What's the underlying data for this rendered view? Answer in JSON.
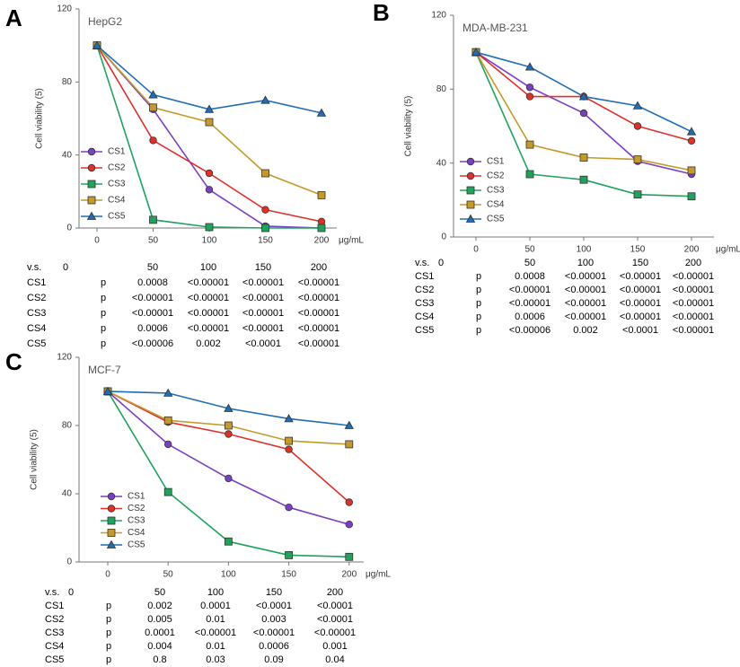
{
  "chart_data": [
    {
      "type": "line",
      "panel_label": "A",
      "title": "HepG2",
      "ylabel": "Cell viability (5)",
      "x_unit": "μg/mL",
      "categories": [
        "0",
        "50",
        "100",
        "150",
        "200"
      ],
      "ylim": [
        0,
        120
      ],
      "yticks": [
        0,
        40,
        80,
        120
      ],
      "legend": "left",
      "series": [
        {
          "name": "CS1",
          "color": "#7b3fc4",
          "marker": "circle",
          "values": [
            100,
            65,
            21,
            1,
            0
          ]
        },
        {
          "name": "CS2",
          "color": "#e0302a",
          "marker": "circle",
          "values": [
            100,
            48,
            30,
            10,
            3.5
          ]
        },
        {
          "name": "CS3",
          "color": "#1fa35a",
          "marker": "square",
          "values": [
            100,
            4.5,
            0.5,
            0,
            0
          ]
        },
        {
          "name": "CS4",
          "color": "#c49a2c",
          "marker": "square",
          "values": [
            100,
            66,
            58,
            30,
            18
          ]
        },
        {
          "name": "CS5",
          "color": "#1f6eb5",
          "marker": "triangle",
          "values": [
            100,
            73,
            65,
            70,
            63
          ]
        }
      ],
      "table": {
        "header": [
          "v.s.",
          "0",
          "50",
          "100",
          "150",
          "200"
        ],
        "rows": [
          [
            "CS1",
            "p",
            "0.0008",
            "<0.00001",
            "<0.00001",
            "<0.00001"
          ],
          [
            "CS2",
            "p",
            "<0.00001",
            "<0.00001",
            "<0.00001",
            "<0.00001"
          ],
          [
            "CS3",
            "p",
            "<0.00001",
            "<0.00001",
            "<0.00001",
            "<0.00001"
          ],
          [
            "CS4",
            "p",
            "0.0006",
            "<0.00001",
            "<0.00001",
            "<0.00001"
          ],
          [
            "CS5",
            "p",
            "<0.00006",
            "0.002",
            "<0.0001",
            "<0.00001"
          ]
        ]
      }
    },
    {
      "type": "line",
      "panel_label": "B",
      "title": "MDA-MB-231",
      "ylabel": "Cell viability (5)",
      "x_unit": "μg/mL",
      "categories": [
        "0",
        "50",
        "100",
        "150",
        "200"
      ],
      "ylim": [
        0,
        120
      ],
      "yticks": [
        0,
        40,
        80,
        120
      ],
      "legend": "left",
      "series": [
        {
          "name": "CS1",
          "color": "#7b3fc4",
          "marker": "circle",
          "values": [
            100,
            81,
            67,
            41,
            34
          ]
        },
        {
          "name": "CS2",
          "color": "#e0302a",
          "marker": "circle",
          "values": [
            100,
            76,
            76,
            60,
            52
          ]
        },
        {
          "name": "CS3",
          "color": "#1fa35a",
          "marker": "square",
          "values": [
            100,
            34,
            31,
            23,
            22
          ]
        },
        {
          "name": "CS4",
          "color": "#c49a2c",
          "marker": "square",
          "values": [
            100,
            50,
            43,
            42,
            36
          ]
        },
        {
          "name": "CS5",
          "color": "#1f6eb5",
          "marker": "triangle",
          "values": [
            100,
            92,
            76,
            71,
            57
          ]
        }
      ],
      "table": {
        "header": [
          "v.s.",
          "0",
          "50",
          "100",
          "150",
          "200"
        ],
        "rows": [
          [
            "CS1",
            "p",
            "0.0008",
            "<0.00001",
            "<0.00001",
            "<0.00001"
          ],
          [
            "CS2",
            "p",
            "<0.00001",
            "<0.00001",
            "<0.00001",
            "<0.00001"
          ],
          [
            "CS3",
            "p",
            "<0.00001",
            "<0.00001",
            "<0.00001",
            "<0.00001"
          ],
          [
            "CS4",
            "p",
            "0.0006",
            "<0.00001",
            "<0.00001",
            "<0.00001"
          ],
          [
            "CS5",
            "p",
            "<0.00006",
            "0.002",
            "<0.0001",
            "<0.00001"
          ]
        ]
      }
    },
    {
      "type": "line",
      "panel_label": "C",
      "title": "MCF-7",
      "ylabel": "Cell viability (5)",
      "x_unit": "μg/mL",
      "categories": [
        "0",
        "50",
        "100",
        "150",
        "200"
      ],
      "ylim": [
        0,
        120
      ],
      "yticks": [
        0,
        40,
        80,
        120
      ],
      "legend": "left",
      "series": [
        {
          "name": "CS1",
          "color": "#7b3fc4",
          "marker": "circle",
          "values": [
            100,
            69,
            49,
            32,
            22
          ]
        },
        {
          "name": "CS2",
          "color": "#e0302a",
          "marker": "circle",
          "values": [
            100,
            82,
            75,
            66,
            35
          ]
        },
        {
          "name": "CS3",
          "color": "#1fa35a",
          "marker": "square",
          "values": [
            100,
            41,
            12,
            4,
            3
          ]
        },
        {
          "name": "CS4",
          "color": "#c49a2c",
          "marker": "square",
          "values": [
            100,
            83,
            80,
            71,
            69
          ]
        },
        {
          "name": "CS5",
          "color": "#1f6eb5",
          "marker": "triangle",
          "values": [
            100,
            99,
            90,
            84,
            80
          ]
        }
      ],
      "table": {
        "header": [
          "v.s.",
          "0",
          "50",
          "100",
          "150",
          "200"
        ],
        "rows": [
          [
            "CS1",
            "p",
            "0.002",
            "0.0001",
            "<0.0001",
            "<0.0001"
          ],
          [
            "CS2",
            "p",
            "0.005",
            "0.01",
            "0.003",
            "<0.0001"
          ],
          [
            "CS3",
            "p",
            "0.0001",
            "<0.00001",
            "<0.00001",
            "<0.00001"
          ],
          [
            "CS4",
            "p",
            "0.004",
            "0.01",
            "0.0006",
            "0.001"
          ],
          [
            "CS5",
            "p",
            "0.8",
            "0.03",
            "0.09",
            "0.04"
          ]
        ]
      }
    }
  ]
}
